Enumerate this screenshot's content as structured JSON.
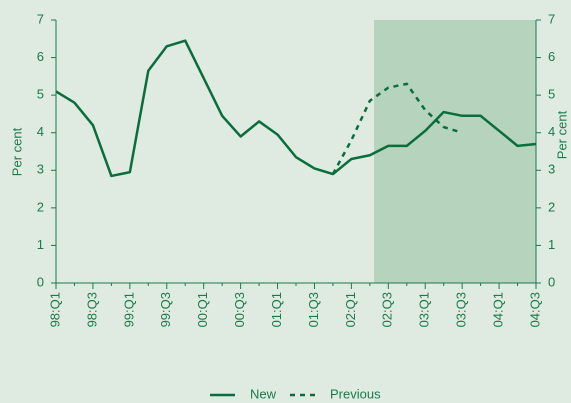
{
  "chart_data": {
    "type": "line",
    "ylabel": "Per cent",
    "y2label": "Per cent",
    "categories": [
      "98:Q1",
      null,
      "98:Q3",
      null,
      "99:Q1",
      null,
      "99:Q3",
      null,
      "00:Q1",
      null,
      "00:Q3",
      null,
      "01:Q1",
      null,
      "01:Q3",
      null,
      "02:Q1",
      null,
      "02:Q3",
      null,
      "03:Q1",
      null,
      "03:Q3",
      null,
      "04:Q1",
      null,
      "04:Q3"
    ],
    "series": [
      {
        "name": "New",
        "color": "#0a6e3c",
        "dash": false,
        "values": [
          5.1,
          4.8,
          4.2,
          2.85,
          2.95,
          5.65,
          6.3,
          6.45,
          5.45,
          4.45,
          3.9,
          4.3,
          3.95,
          3.35,
          3.05,
          2.9,
          3.3,
          3.4,
          3.65,
          3.65,
          4.05,
          4.55,
          4.45,
          4.45,
          4.05,
          3.65,
          3.7
        ]
      },
      {
        "name": "Previous",
        "color": "#0a6e3c",
        "dash": true,
        "values": [
          null,
          null,
          null,
          null,
          null,
          null,
          null,
          null,
          null,
          null,
          null,
          null,
          null,
          null,
          null,
          2.9,
          3.8,
          4.85,
          5.2,
          5.3,
          4.6,
          4.15,
          4.0,
          null,
          null,
          null,
          null
        ]
      }
    ],
    "ylim": [
      0,
      7
    ],
    "yticks": [
      0,
      1,
      2,
      3,
      4,
      5,
      6,
      7
    ],
    "y2lim": [
      0,
      7
    ],
    "y2ticks": [
      0,
      1,
      2,
      3,
      4,
      5,
      6,
      7
    ]
  }
}
